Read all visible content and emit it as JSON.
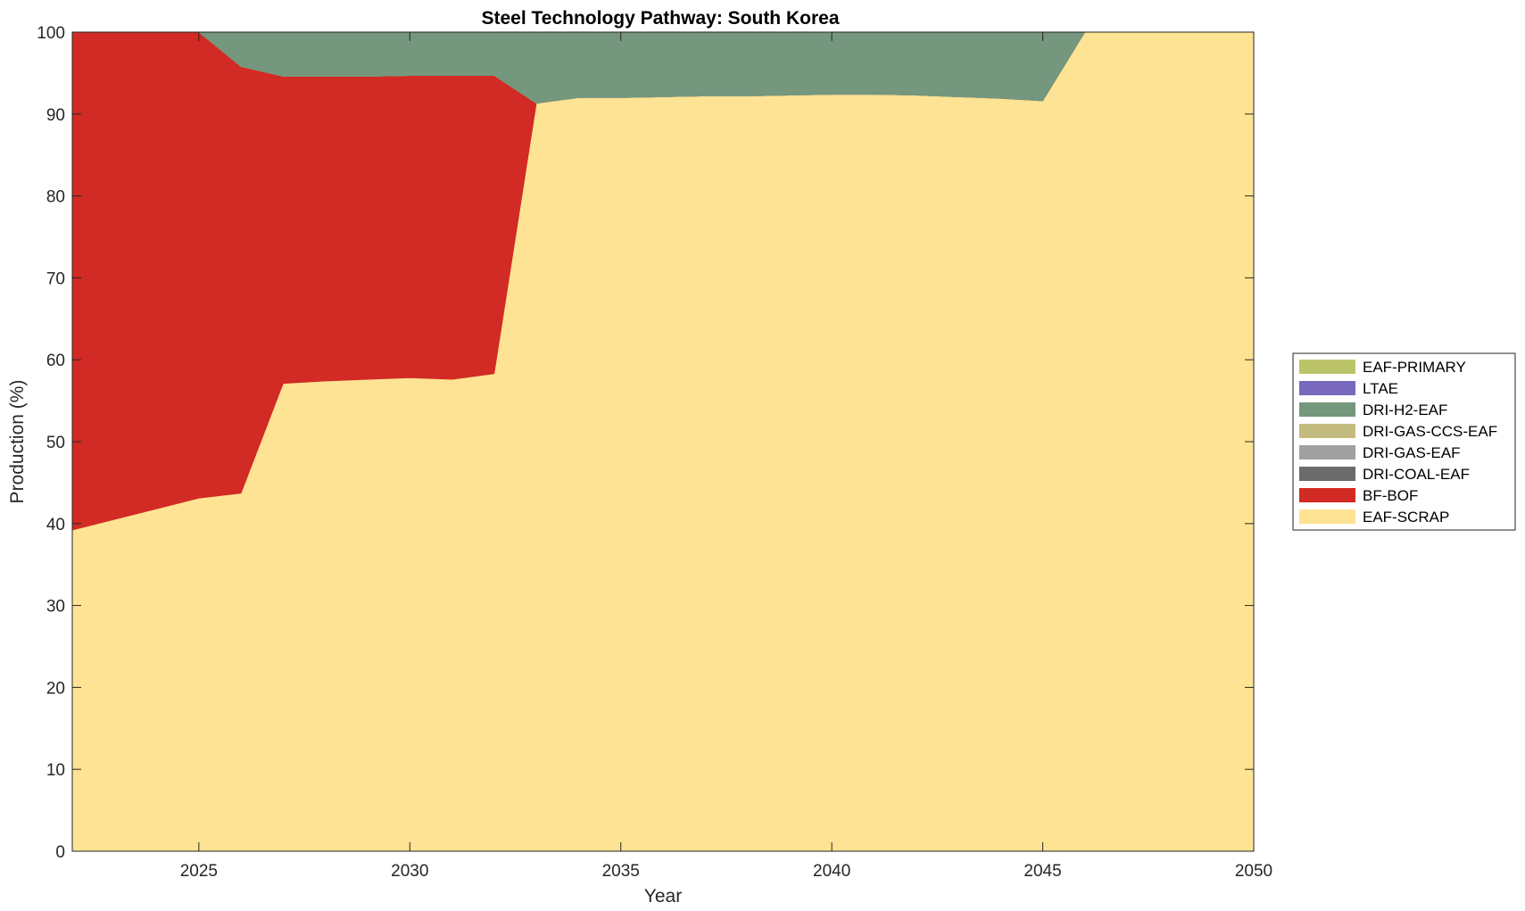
{
  "chart_data": {
    "type": "area",
    "stacked": true,
    "title": "Steel Technology Pathway: South Korea",
    "xlabel": "Year",
    "ylabel": "Production (%)",
    "xlim": [
      2022,
      2050
    ],
    "ylim": [
      0,
      100
    ],
    "x_ticks": [
      2025,
      2030,
      2035,
      2040,
      2045,
      2050
    ],
    "y_ticks": [
      0,
      10,
      20,
      30,
      40,
      50,
      60,
      70,
      80,
      90,
      100
    ],
    "x_tick_labels": [
      "2025",
      "2030",
      "2035",
      "2040",
      "2045",
      "2050"
    ],
    "y_tick_labels": [
      "0",
      "10",
      "20",
      "30",
      "40",
      "50",
      "60",
      "70",
      "80",
      "90",
      "100"
    ],
    "grid": false,
    "legend_position": "right",
    "x": [
      2022,
      2023,
      2024,
      2025,
      2026,
      2027,
      2028,
      2029,
      2030,
      2031,
      2032,
      2033,
      2034,
      2035,
      2036,
      2037,
      2038,
      2039,
      2040,
      2041,
      2042,
      2043,
      2044,
      2045,
      2046,
      2047,
      2048,
      2049,
      2050
    ],
    "series": [
      {
        "name": "EAF-SCRAP",
        "color": "#FEE394",
        "values": [
          39.2,
          40.5,
          41.8,
          43.1,
          43.7,
          57.1,
          57.4,
          57.6,
          57.8,
          57.6,
          58.3,
          91.3,
          92.0,
          92.0,
          92.1,
          92.2,
          92.2,
          92.3,
          92.4,
          92.4,
          92.3,
          92.1,
          91.9,
          91.6,
          100,
          100,
          100,
          100,
          100
        ]
      },
      {
        "name": "BF-BOF",
        "color": "#D22A24",
        "values": [
          60.8,
          59.5,
          58.2,
          56.9,
          52.1,
          37.5,
          37.2,
          37.0,
          36.9,
          37.1,
          36.4,
          0,
          0,
          0,
          0,
          0,
          0,
          0,
          0,
          0,
          0,
          0,
          0,
          0,
          0,
          0,
          0,
          0,
          0
        ]
      },
      {
        "name": "DRI-COAL-EAF",
        "color": "#6B6B6B",
        "values": [
          0,
          0,
          0,
          0,
          0,
          0,
          0,
          0,
          0,
          0,
          0,
          0,
          0,
          0,
          0,
          0,
          0,
          0,
          0,
          0,
          0,
          0,
          0,
          0,
          0,
          0,
          0,
          0,
          0
        ]
      },
      {
        "name": "DRI-GAS-EAF",
        "color": "#A0A0A0",
        "values": [
          0,
          0,
          0,
          0,
          0,
          0,
          0,
          0,
          0,
          0,
          0,
          0,
          0,
          0,
          0,
          0,
          0,
          0,
          0,
          0,
          0,
          0,
          0,
          0,
          0,
          0,
          0,
          0,
          0
        ]
      },
      {
        "name": "DRI-GAS-CCS-EAF",
        "color": "#C4BB80",
        "values": [
          0,
          0,
          0,
          0,
          0,
          0,
          0,
          0,
          0,
          0,
          0,
          0,
          0,
          0,
          0,
          0,
          0,
          0,
          0,
          0,
          0,
          0,
          0,
          0,
          0,
          0,
          0,
          0,
          0
        ]
      },
      {
        "name": "DRI-H2-EAF",
        "color": "#74977D",
        "values": [
          0,
          0,
          0,
          0,
          4.2,
          5.4,
          5.4,
          5.4,
          5.3,
          5.3,
          5.3,
          8.7,
          8.0,
          8.0,
          7.9,
          7.8,
          7.8,
          7.7,
          7.6,
          7.6,
          7.7,
          7.9,
          8.1,
          8.4,
          0,
          0,
          0,
          0,
          0
        ]
      },
      {
        "name": "LTAE",
        "color": "#7869BC",
        "values": [
          0,
          0,
          0,
          0,
          0,
          0,
          0,
          0,
          0,
          0,
          0,
          0,
          0,
          0,
          0,
          0,
          0,
          0,
          0,
          0,
          0,
          0,
          0,
          0,
          0,
          0,
          0,
          0,
          0
        ]
      },
      {
        "name": "EAF-PRIMARY",
        "color": "#BCC46A",
        "values": [
          0,
          0,
          0,
          0,
          0,
          0,
          0,
          0,
          0,
          0,
          0,
          0,
          0,
          0,
          0,
          0,
          0,
          0,
          0,
          0,
          0,
          0,
          0,
          0,
          0,
          0,
          0,
          0,
          0
        ]
      }
    ],
    "legend_order": [
      "EAF-PRIMARY",
      "LTAE",
      "DRI-H2-EAF",
      "DRI-GAS-CCS-EAF",
      "DRI-GAS-EAF",
      "DRI-COAL-EAF",
      "BF-BOF",
      "EAF-SCRAP"
    ]
  }
}
